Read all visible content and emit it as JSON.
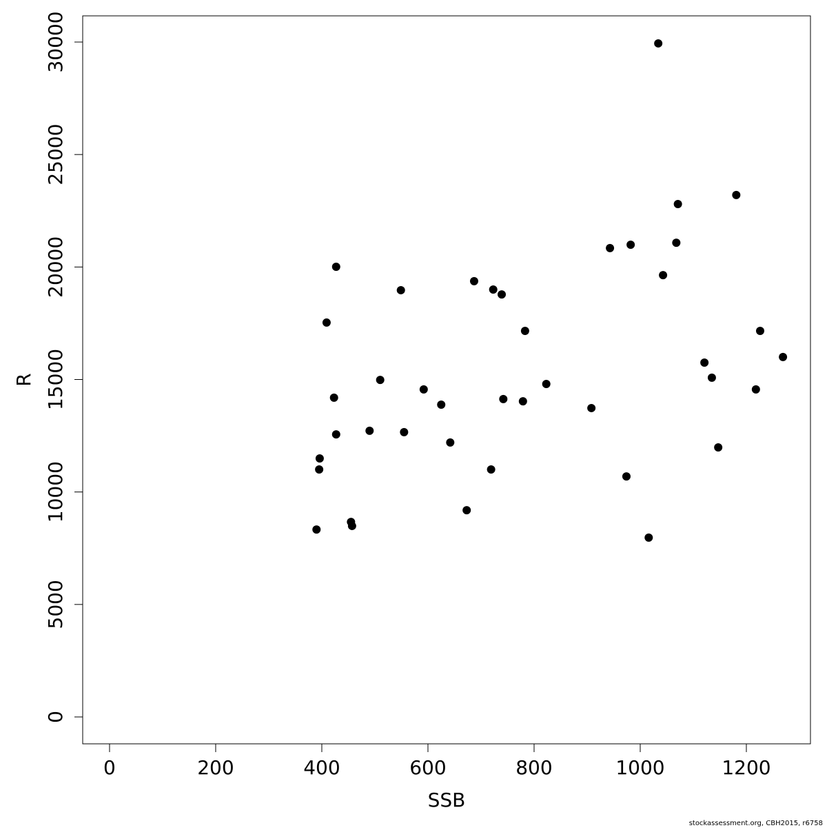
{
  "chart_data": {
    "type": "scatter",
    "xlabel": "SSB",
    "ylabel": "R",
    "footnote": "stockassessment.org, CBH2015, r6758",
    "color": "#000000",
    "x": [
      1034,
      1181,
      1071,
      1068,
      982,
      943,
      427,
      1043,
      549,
      687,
      723,
      739,
      409,
      783,
      1226,
      1269,
      1121,
      510,
      1135,
      823,
      592,
      1218,
      423,
      742,
      779,
      625,
      908,
      490,
      555,
      427,
      642,
      1147,
      396,
      395,
      719,
      974,
      673,
      455,
      457,
      390,
      1016
    ],
    "y": [
      29940,
      23200,
      22800,
      21080,
      20990,
      20840,
      20010,
      19640,
      18970,
      19370,
      19000,
      18780,
      17530,
      17160,
      17160,
      16000,
      15750,
      14980,
      15080,
      14800,
      14560,
      14560,
      14190,
      14130,
      14030,
      13880,
      13730,
      12720,
      12660,
      12560,
      12200,
      11980,
      11490,
      11000,
      11000,
      10690,
      9190,
      8670,
      8490,
      8330,
      7970
    ],
    "xlim": [
      -50.6,
      1320.8
    ],
    "ylim": [
      -1195,
      31164
    ],
    "xticks": [
      0,
      200,
      400,
      600,
      800,
      1000,
      1200
    ],
    "yticks": [
      0,
      5000,
      10000,
      15000,
      20000,
      25000,
      30000
    ]
  }
}
